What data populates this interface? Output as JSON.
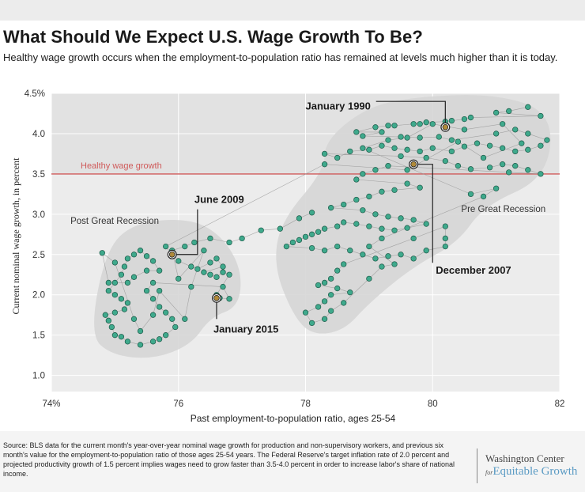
{
  "header": {
    "title": "What Should We Expect U.S. Wage Growth To Be?",
    "subtitle": "Healthy wage growth occurs when the employment-to-population ratio has remained at levels much higher than it is today."
  },
  "footer": {
    "source": "Source: BLS data for the current month's year-over-year nominal wage growth for production and non-supervisory workers, and previous six month's value for the employment-to-population ratio of those ages 25-54 years. The Federal Reserve's target inflation rate of 2.0 percent and projected productivity growth of 1.5 percent implies wages need to grow faster than 3.5-4.0 percent in order to increase labor's share of national income.",
    "logo_line1": "Washington Center",
    "logo_for": "for",
    "logo_line2": "Equitable Growth"
  },
  "colors": {
    "point_fill": "#3fa98c",
    "point_stroke": "#1c5a48",
    "highlight_fill": "#b08a3a",
    "threshold_line": "#cf5a5a",
    "cluster_fill": "#d6d6d6",
    "upper_band": "#e2e2e2",
    "lower_band": "#ececec"
  },
  "chart_data": {
    "type": "scatter",
    "xlabel": "Past employment-to-population ratio, ages 25-54",
    "ylabel": "Current nominal wage growth, in percent",
    "xlim": [
      74,
      82
    ],
    "ylim": [
      0.8,
      4.5
    ],
    "x_ticks": [
      {
        "value": 74,
        "label": "74%"
      },
      {
        "value": 76,
        "label": "76"
      },
      {
        "value": 78,
        "label": "78"
      },
      {
        "value": 80,
        "label": "80"
      },
      {
        "value": 82,
        "label": "82"
      }
    ],
    "y_ticks": [
      {
        "value": 1.0,
        "label": "1.0"
      },
      {
        "value": 1.5,
        "label": "1.5"
      },
      {
        "value": 2.0,
        "label": "2.0"
      },
      {
        "value": 2.5,
        "label": "2.5"
      },
      {
        "value": 3.0,
        "label": "3.0"
      },
      {
        "value": 3.5,
        "label": "3.5"
      },
      {
        "value": 4.0,
        "label": "4.0"
      },
      {
        "value": 4.5,
        "label": "4.5%"
      }
    ],
    "threshold": {
      "value": 3.5,
      "label": "Healthy wage growth"
    },
    "regions": [
      {
        "label": "Post Great Recession",
        "label_x": 74.3,
        "label_y": 2.88
      },
      {
        "label": "Pre Great Recession",
        "label_x": 80.45,
        "label_y": 3.03
      }
    ],
    "annotations": [
      {
        "label": "January 1990",
        "x": 80.2,
        "y": 4.08,
        "label_x": 78.0,
        "label_y": 4.3,
        "elbow_x": 80.2,
        "elbow_y": 4.4
      },
      {
        "label": "December 2007",
        "x": 79.7,
        "y": 3.62,
        "label_x": 80.05,
        "label_y": 2.26,
        "elbow_x": 80.0,
        "elbow_y": 3.62
      },
      {
        "label": "June 2009",
        "x": 75.9,
        "y": 2.5,
        "label_x": 76.25,
        "label_y": 3.14,
        "elbow_x": 76.3,
        "elbow_y": 2.5
      },
      {
        "label": "January 2015",
        "x": 76.6,
        "y": 1.96,
        "label_x": 76.55,
        "label_y": 1.53,
        "elbow_x": 76.6,
        "elbow_y": 1.7
      }
    ],
    "series": [
      {
        "points": [
          [
            81.5,
            4.33
          ],
          [
            81.2,
            4.28
          ],
          [
            81.0,
            4.26
          ],
          [
            81.7,
            4.22
          ],
          [
            80.6,
            4.2
          ],
          [
            80.5,
            4.18
          ],
          [
            80.3,
            4.16
          ],
          [
            80.2,
            4.15
          ],
          [
            79.9,
            4.14
          ],
          [
            79.8,
            4.12
          ],
          [
            79.7,
            4.12
          ],
          [
            79.4,
            4.1
          ],
          [
            79.3,
            4.1
          ],
          [
            79.1,
            4.08
          ],
          [
            78.8,
            4.02
          ],
          [
            79.2,
            4.02
          ],
          [
            78.9,
            3.97
          ],
          [
            79.5,
            3.96
          ],
          [
            79.8,
            3.95
          ],
          [
            80.1,
            3.96
          ],
          [
            80.3,
            3.92
          ],
          [
            81.0,
            4.0
          ],
          [
            81.3,
            4.05
          ],
          [
            81.5,
            4.0
          ],
          [
            81.8,
            3.92
          ],
          [
            81.7,
            3.85
          ],
          [
            81.5,
            3.8
          ],
          [
            81.3,
            3.78
          ],
          [
            81.1,
            3.82
          ],
          [
            80.9,
            3.85
          ],
          [
            80.7,
            3.88
          ],
          [
            80.5,
            3.84
          ],
          [
            80.3,
            3.78
          ],
          [
            80.0,
            3.82
          ],
          [
            79.8,
            3.78
          ],
          [
            79.6,
            3.8
          ],
          [
            79.4,
            3.82
          ],
          [
            79.2,
            3.85
          ],
          [
            79.0,
            3.8
          ],
          [
            78.7,
            3.78
          ],
          [
            78.5,
            3.7
          ],
          [
            78.3,
            3.75
          ],
          [
            79.5,
            3.72
          ],
          [
            79.9,
            3.7
          ],
          [
            80.2,
            3.66
          ],
          [
            80.4,
            3.6
          ],
          [
            80.6,
            3.56
          ],
          [
            80.9,
            3.58
          ],
          [
            81.1,
            3.62
          ],
          [
            81.3,
            3.6
          ],
          [
            81.5,
            3.55
          ],
          [
            81.7,
            3.5
          ],
          [
            81.2,
            3.52
          ],
          [
            79.3,
            3.6
          ],
          [
            79.1,
            3.55
          ],
          [
            78.9,
            3.5
          ],
          [
            78.8,
            3.43
          ],
          [
            79.6,
            3.38
          ],
          [
            79.8,
            3.33
          ],
          [
            79.4,
            3.3
          ],
          [
            79.2,
            3.28
          ],
          [
            79.0,
            3.22
          ],
          [
            78.8,
            3.18
          ],
          [
            78.6,
            3.12
          ],
          [
            78.4,
            3.08
          ],
          [
            78.9,
            3.05
          ],
          [
            79.1,
            3.0
          ],
          [
            79.3,
            2.97
          ],
          [
            79.5,
            2.95
          ],
          [
            79.7,
            2.93
          ],
          [
            79.9,
            2.88
          ],
          [
            79.6,
            2.83
          ],
          [
            79.4,
            2.8
          ],
          [
            79.2,
            2.82
          ],
          [
            79.0,
            2.85
          ],
          [
            78.8,
            2.88
          ],
          [
            78.6,
            2.9
          ],
          [
            78.5,
            2.85
          ],
          [
            78.3,
            2.82
          ],
          [
            78.2,
            2.78
          ],
          [
            78.1,
            2.75
          ],
          [
            78.0,
            2.72
          ],
          [
            77.9,
            2.68
          ],
          [
            77.8,
            2.65
          ],
          [
            77.7,
            2.6
          ],
          [
            78.1,
            2.58
          ],
          [
            78.3,
            2.55
          ],
          [
            78.5,
            2.6
          ],
          [
            78.7,
            2.55
          ],
          [
            78.9,
            2.5
          ],
          [
            79.1,
            2.45
          ],
          [
            79.3,
            2.48
          ],
          [
            79.5,
            2.5
          ],
          [
            79.7,
            2.45
          ],
          [
            79.9,
            2.55
          ],
          [
            80.2,
            2.6
          ],
          [
            80.2,
            2.7
          ],
          [
            80.2,
            2.85
          ],
          [
            79.7,
            2.7
          ],
          [
            78.6,
            2.38
          ],
          [
            78.5,
            2.3
          ],
          [
            78.4,
            2.2
          ],
          [
            78.3,
            2.15
          ],
          [
            78.2,
            2.12
          ],
          [
            78.5,
            2.08
          ],
          [
            78.7,
            2.03
          ],
          [
            78.4,
            2.0
          ],
          [
            78.3,
            1.92
          ],
          [
            78.2,
            1.85
          ],
          [
            78.0,
            1.78
          ],
          [
            78.1,
            1.65
          ],
          [
            78.3,
            1.7
          ],
          [
            78.4,
            1.8
          ],
          [
            78.6,
            1.9
          ],
          [
            79.0,
            2.2
          ],
          [
            79.2,
            2.35
          ],
          [
            79.4,
            2.38
          ],
          [
            79.0,
            2.6
          ],
          [
            79.2,
            2.7
          ],
          [
            80.8,
            3.22
          ],
          [
            81.0,
            3.32
          ],
          [
            80.6,
            3.25
          ],
          [
            78.9,
            3.82
          ],
          [
            79.3,
            3.92
          ],
          [
            79.6,
            3.95
          ],
          [
            80.0,
            4.12
          ],
          [
            80.5,
            4.05
          ],
          [
            81.1,
            4.12
          ],
          [
            81.4,
            3.88
          ],
          [
            80.8,
            3.7
          ],
          [
            80.4,
            3.9
          ],
          [
            79.6,
            3.55
          ],
          [
            78.3,
            3.62
          ],
          [
            75.8,
            2.6
          ],
          [
            75.9,
            2.5
          ],
          [
            76.0,
            2.42
          ],
          [
            76.2,
            2.35
          ],
          [
            76.3,
            2.32
          ],
          [
            76.5,
            2.4
          ],
          [
            76.6,
            2.45
          ],
          [
            76.7,
            2.35
          ],
          [
            76.4,
            2.28
          ],
          [
            76.5,
            2.25
          ],
          [
            76.6,
            2.22
          ],
          [
            76.7,
            2.28
          ],
          [
            76.8,
            2.25
          ],
          [
            76.6,
            2.0
          ],
          [
            76.65,
            1.96
          ],
          [
            76.8,
            1.95
          ],
          [
            76.7,
            2.1
          ],
          [
            75.6,
            2.15
          ],
          [
            75.5,
            2.05
          ],
          [
            75.6,
            1.95
          ],
          [
            75.7,
            1.85
          ],
          [
            75.8,
            1.78
          ],
          [
            75.9,
            1.7
          ],
          [
            75.95,
            1.6
          ],
          [
            75.8,
            1.5
          ],
          [
            75.7,
            1.45
          ],
          [
            75.6,
            1.42
          ],
          [
            75.4,
            1.38
          ],
          [
            75.2,
            1.42
          ],
          [
            75.1,
            1.48
          ],
          [
            75.0,
            1.5
          ],
          [
            74.95,
            1.6
          ],
          [
            74.9,
            1.68
          ],
          [
            74.85,
            1.75
          ],
          [
            75.0,
            1.78
          ],
          [
            75.15,
            1.82
          ],
          [
            75.2,
            1.9
          ],
          [
            75.1,
            1.95
          ],
          [
            75.0,
            2.0
          ],
          [
            74.9,
            2.05
          ],
          [
            75.0,
            2.15
          ],
          [
            75.1,
            2.25
          ],
          [
            75.15,
            2.35
          ],
          [
            75.2,
            2.45
          ],
          [
            75.3,
            2.5
          ],
          [
            75.4,
            2.55
          ],
          [
            75.5,
            2.48
          ],
          [
            75.6,
            2.42
          ],
          [
            75.7,
            2.3
          ],
          [
            75.5,
            2.3
          ],
          [
            75.3,
            2.22
          ],
          [
            75.2,
            2.15
          ],
          [
            74.9,
            2.15
          ],
          [
            74.8,
            2.52
          ],
          [
            75.0,
            2.4
          ],
          [
            75.3,
            1.7
          ],
          [
            75.4,
            1.55
          ],
          [
            75.6,
            1.75
          ],
          [
            75.7,
            2.05
          ],
          [
            76.1,
            1.7
          ],
          [
            76.2,
            2.1
          ],
          [
            76.4,
            2.55
          ],
          [
            76.0,
            2.2
          ],
          [
            75.9,
            2.55
          ],
          [
            76.1,
            2.6
          ],
          [
            76.25,
            2.65
          ],
          [
            76.5,
            2.7
          ],
          [
            76.8,
            2.65
          ],
          [
            77.0,
            2.7
          ],
          [
            77.3,
            2.8
          ],
          [
            77.6,
            2.82
          ],
          [
            77.9,
            2.95
          ],
          [
            78.1,
            3.02
          ]
        ]
      }
    ]
  }
}
